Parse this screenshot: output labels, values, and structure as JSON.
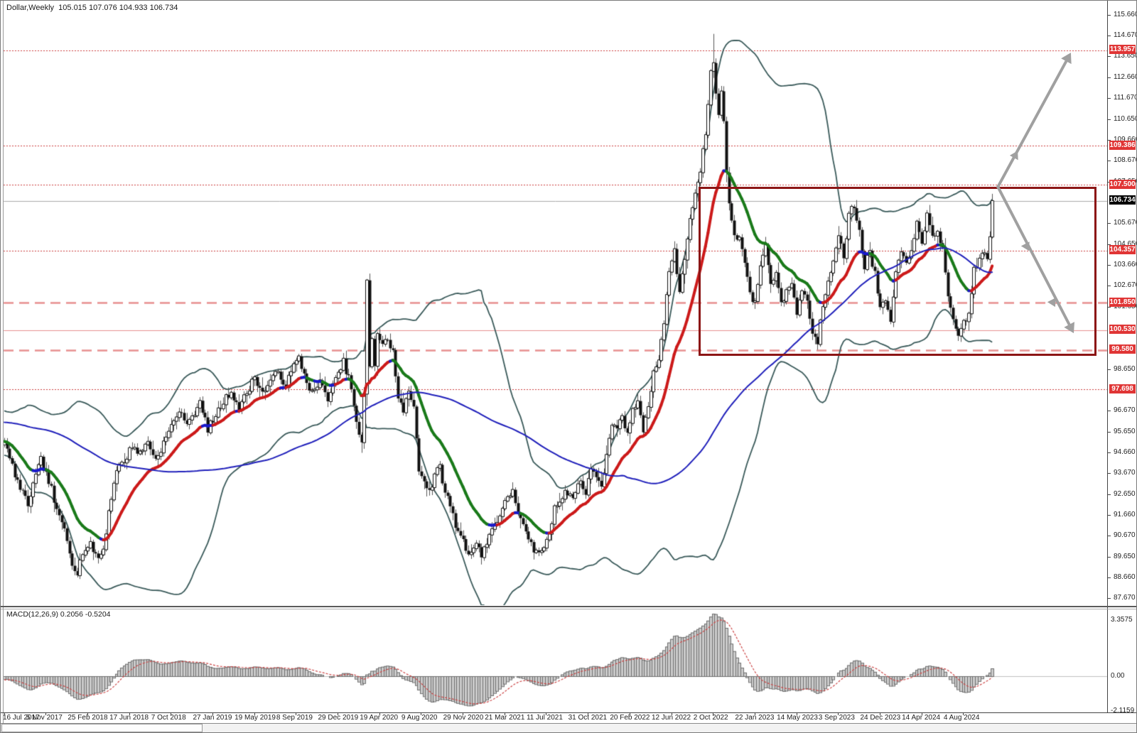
{
  "window": {
    "title": "Dollar,Weekly  105.015 107.076 104.933 106.734"
  },
  "colors": {
    "background": "#ffffff",
    "band_line": "#3a5a5a",
    "candle_body": "#111111",
    "candle_wick": "#555555",
    "ma_fast_up": "#cc1a1a",
    "ma_fast_down": "#1a7a1a",
    "ma_fast_flat": "#1a1acc",
    "ma_slow": "#2020bb",
    "macd_bar_fill": "#cccccc",
    "macd_bar_stroke": "#6e6e6e",
    "macd_signal": "#cc4444",
    "dotted_level": "#cc3b3b",
    "salmon_level": "#e89090",
    "current_price_line": "#aaaaaa",
    "tag_red": "#e03535",
    "tag_black": "#000000",
    "arrow": "#a0a0a0",
    "rectangle": "#8c1515"
  },
  "chart_data": {
    "type": "candlestick",
    "symbol": "Dollar",
    "timeframe": "Weekly",
    "ohlc_display": {
      "open": "105.015",
      "high": "107.076",
      "low": "104.933",
      "close": "106.734"
    },
    "weeks_total": 380,
    "ylim_price": [
      87.34,
      115.865
    ],
    "price_anchors": [
      [
        0,
        95.1
      ],
      [
        3,
        94.0
      ],
      [
        6,
        92.9
      ],
      [
        9,
        92.2
      ],
      [
        12,
        93.5
      ],
      [
        14,
        94.3
      ],
      [
        16,
        93.6
      ],
      [
        18,
        92.9
      ],
      [
        20,
        91.8
      ],
      [
        23,
        91.0
      ],
      [
        26,
        89.4
      ],
      [
        28,
        88.9
      ],
      [
        30,
        89.9
      ],
      [
        33,
        90.2
      ],
      [
        36,
        89.6
      ],
      [
        38,
        90.0
      ],
      [
        40,
        91.8
      ],
      [
        43,
        93.9
      ],
      [
        46,
        94.2
      ],
      [
        49,
        95.0
      ],
      [
        52,
        94.6
      ],
      [
        55,
        95.2
      ],
      [
        58,
        94.3
      ],
      [
        61,
        95.1
      ],
      [
        64,
        95.9
      ],
      [
        67,
        96.7
      ],
      [
        69,
        96.1
      ],
      [
        72,
        96.4
      ],
      [
        75,
        97.0
      ],
      [
        78,
        95.8
      ],
      [
        81,
        96.4
      ],
      [
        84,
        97.1
      ],
      [
        87,
        97.6
      ],
      [
        90,
        96.8
      ],
      [
        93,
        97.5
      ],
      [
        96,
        98.3
      ],
      [
        99,
        97.5
      ],
      [
        102,
        98.1
      ],
      [
        105,
        98.5
      ],
      [
        108,
        97.9
      ],
      [
        111,
        98.8
      ],
      [
        113,
        99.2
      ],
      [
        115,
        98.4
      ],
      [
        118,
        97.5
      ],
      [
        121,
        98.0
      ],
      [
        124,
        97.3
      ],
      [
        127,
        98.1
      ],
      [
        130,
        99.0
      ],
      [
        133,
        97.8
      ],
      [
        135,
        96.0
      ],
      [
        137,
        95.1
      ],
      [
        138,
        97.4
      ],
      [
        139,
        102.8
      ],
      [
        140,
        98.8
      ],
      [
        141,
        100.2
      ],
      [
        142,
        98.9
      ],
      [
        143,
        100.4
      ],
      [
        145,
        99.8
      ],
      [
        147,
        100.1
      ],
      [
        149,
        99.5
      ],
      [
        151,
        97.2
      ],
      [
        153,
        96.7
      ],
      [
        155,
        97.5
      ],
      [
        157,
        96.9
      ],
      [
        159,
        93.9
      ],
      [
        161,
        93.3
      ],
      [
        163,
        92.8
      ],
      [
        165,
        93.5
      ],
      [
        167,
        94.0
      ],
      [
        169,
        92.7
      ],
      [
        171,
        92.2
      ],
      [
        173,
        91.1
      ],
      [
        175,
        90.8
      ],
      [
        177,
        90.0
      ],
      [
        179,
        89.9
      ],
      [
        181,
        90.3
      ],
      [
        183,
        89.7
      ],
      [
        185,
        90.4
      ],
      [
        187,
        91.0
      ],
      [
        189,
        91.4
      ],
      [
        191,
        92.0
      ],
      [
        193,
        92.4
      ],
      [
        195,
        92.9
      ],
      [
        197,
        91.8
      ],
      [
        199,
        91.1
      ],
      [
        201,
        90.4
      ],
      [
        203,
        90.0
      ],
      [
        205,
        89.8
      ],
      [
        207,
        90.2
      ],
      [
        209,
        90.6
      ],
      [
        211,
        92.1
      ],
      [
        213,
        92.3
      ],
      [
        215,
        92.9
      ],
      [
        217,
        92.5
      ],
      [
        219,
        92.8
      ],
      [
        221,
        93.3
      ],
      [
        223,
        92.6
      ],
      [
        225,
        94.0
      ],
      [
        227,
        93.4
      ],
      [
        229,
        93.2
      ],
      [
        231,
        94.4
      ],
      [
        233,
        96.1
      ],
      [
        235,
        95.9
      ],
      [
        237,
        96.3
      ],
      [
        239,
        95.7
      ],
      [
        241,
        96.6
      ],
      [
        243,
        97.2
      ],
      [
        245,
        95.8
      ],
      [
        247,
        96.8
      ],
      [
        249,
        98.4
      ],
      [
        251,
        99.2
      ],
      [
        253,
        101.0
      ],
      [
        255,
        103.2
      ],
      [
        257,
        104.5
      ],
      [
        259,
        102.2
      ],
      [
        261,
        104.0
      ],
      [
        263,
        105.8
      ],
      [
        265,
        107.1
      ],
      [
        267,
        108.1
      ],
      [
        269,
        110.0
      ],
      [
        271,
        112.9
      ],
      [
        272,
        113.2
      ],
      [
        273,
        112.0
      ],
      [
        274,
        110.8
      ],
      [
        275,
        112.0
      ],
      [
        276,
        110.7
      ],
      [
        277,
        108.1
      ],
      [
        278,
        106.5
      ],
      [
        280,
        105.2
      ],
      [
        282,
        104.9
      ],
      [
        284,
        103.9
      ],
      [
        286,
        102.2
      ],
      [
        288,
        101.8
      ],
      [
        290,
        103.7
      ],
      [
        292,
        104.6
      ],
      [
        294,
        102.7
      ],
      [
        296,
        103.4
      ],
      [
        298,
        101.8
      ],
      [
        300,
        102.3
      ],
      [
        302,
        102.9
      ],
      [
        304,
        101.3
      ],
      [
        306,
        102.5
      ],
      [
        308,
        102.0
      ],
      [
        310,
        100.3
      ],
      [
        312,
        100.0
      ],
      [
        314,
        101.8
      ],
      [
        316,
        102.9
      ],
      [
        318,
        104.0
      ],
      [
        320,
        105.2
      ],
      [
        322,
        103.9
      ],
      [
        324,
        106.1
      ],
      [
        326,
        106.5
      ],
      [
        328,
        105.3
      ],
      [
        330,
        103.6
      ],
      [
        332,
        104.3
      ],
      [
        334,
        103.2
      ],
      [
        336,
        101.5
      ],
      [
        338,
        102.0
      ],
      [
        340,
        100.9
      ],
      [
        342,
        103.2
      ],
      [
        344,
        104.2
      ],
      [
        346,
        103.8
      ],
      [
        348,
        104.5
      ],
      [
        350,
        105.6
      ],
      [
        352,
        104.6
      ],
      [
        354,
        106.0
      ],
      [
        356,
        105.1
      ],
      [
        358,
        105.3
      ],
      [
        360,
        104.4
      ],
      [
        362,
        102.0
      ],
      [
        364,
        100.9
      ],
      [
        366,
        100.3
      ],
      [
        368,
        100.9
      ],
      [
        370,
        101.3
      ],
      [
        372,
        103.4
      ],
      [
        374,
        103.9
      ],
      [
        376,
        104.3
      ],
      [
        377,
        104.1
      ],
      [
        378,
        104.95
      ],
      [
        379,
        106.734
      ]
    ],
    "prehistory_anchors": [
      [
        -110,
        96.3
      ],
      [
        -95,
        95.4
      ],
      [
        -80,
        96.6
      ],
      [
        -65,
        97.3
      ],
      [
        -50,
        96.6
      ],
      [
        -35,
        96.2
      ],
      [
        -20,
        95.4
      ],
      [
        -10,
        94.9
      ],
      [
        -1,
        95.2
      ]
    ],
    "overrides": {
      "137": {
        "l": 94.65
      },
      "139": {
        "h": 102.99,
        "l": 96.9
      },
      "272": {
        "h": 114.75
      },
      "379": {
        "o": 105.015,
        "h": 107.076,
        "l": 104.933,
        "c": 106.734
      }
    },
    "indicators": {
      "bollinger": {
        "period": 45,
        "deviation": 2
      },
      "ma_fast": {
        "period": 20,
        "note": "thick slope-colored average"
      },
      "ma_slow": {
        "period": 100,
        "note": "thin blue average"
      },
      "macd": {
        "fast": 12,
        "slow": 26,
        "signal": 9,
        "label": "MACD(12,26,9) 0.2056 -0.5204",
        "main_value": "0.2056",
        "signal_value": "-0.5204"
      }
    },
    "levels": [
      {
        "label": "113.957",
        "price": 113.957,
        "line": "dotted",
        "tag": "red"
      },
      {
        "label": "109.386",
        "price": 109.386,
        "line": "dotted",
        "tag": "red"
      },
      {
        "label": "107.500",
        "price": 107.5,
        "line": "dotted",
        "tag": "red"
      },
      {
        "label": "106.734",
        "price": 106.734,
        "line": "current",
        "tag": "black"
      },
      {
        "label": "104.357",
        "price": 104.357,
        "line": "dotted",
        "tag": "red"
      },
      {
        "label": "101.850",
        "price": 101.85,
        "line": "dashed",
        "tag": "red"
      },
      {
        "label": "100.530",
        "price": 100.53,
        "line": "solid",
        "tag": "red"
      },
      {
        "label": "99.580",
        "price": 99.58,
        "line": "dashed",
        "tag": "red"
      },
      {
        "label": "97.698",
        "price": 97.698,
        "line": "dotted",
        "tag": "red"
      }
    ],
    "price_axis_ticks": [
      {
        "label": "115.660",
        "price": 115.66
      },
      {
        "label": "114.670",
        "price": 114.67
      },
      {
        "label": "113.650",
        "price": 113.65
      },
      {
        "label": "112.660",
        "price": 112.66
      },
      {
        "label": "111.670",
        "price": 111.67
      },
      {
        "label": "110.650",
        "price": 110.65
      },
      {
        "label": "109.660",
        "price": 109.66
      },
      {
        "label": "108.670",
        "price": 108.67
      },
      {
        "label": "107.650",
        "price": 107.65
      },
      {
        "label": "105.670",
        "price": 105.67
      },
      {
        "label": "104.650",
        "price": 104.65
      },
      {
        "label": "103.660",
        "price": 103.66
      },
      {
        "label": "102.670",
        "price": 102.67
      },
      {
        "label": "101.650",
        "price": 101.65
      },
      {
        "label": "98.650",
        "price": 98.65
      },
      {
        "label": "96.670",
        "price": 96.67
      },
      {
        "label": "95.650",
        "price": 95.65
      },
      {
        "label": "94.660",
        "price": 94.66
      },
      {
        "label": "93.670",
        "price": 93.67
      },
      {
        "label": "92.650",
        "price": 92.65
      },
      {
        "label": "91.660",
        "price": 91.66
      },
      {
        "label": "90.670",
        "price": 90.67
      },
      {
        "label": "89.650",
        "price": 89.65
      },
      {
        "label": "88.660",
        "price": 88.66
      },
      {
        "label": "87.670",
        "price": 87.67
      }
    ],
    "time_axis_ticks": [
      {
        "label": "16 Jul 2017",
        "week": 0
      },
      {
        "label": "5 Nov 2017",
        "week": 16
      },
      {
        "label": "25 Feb 2018",
        "week": 32
      },
      {
        "label": "17 Jun 2018",
        "week": 48
      },
      {
        "label": "7 Oct 2018",
        "week": 64
      },
      {
        "label": "27 Jan 2019",
        "week": 80
      },
      {
        "label": "19 May 2019",
        "week": 96
      },
      {
        "label": "8 Sep 2019",
        "week": 112
      },
      {
        "label": "29 Dec 2019",
        "week": 128
      },
      {
        "label": "19 Apr 2020",
        "week": 144
      },
      {
        "label": "9 Aug 2020",
        "week": 160
      },
      {
        "label": "29 Nov 2020",
        "week": 176
      },
      {
        "label": "21 Mar 2021",
        "week": 192
      },
      {
        "label": "11 Jul 2021",
        "week": 208
      },
      {
        "label": "31 Oct 2021",
        "week": 224
      },
      {
        "label": "20 Feb 2022",
        "week": 240
      },
      {
        "label": "12 Jun 2022",
        "week": 256
      },
      {
        "label": "2 Oct 2022",
        "week": 272
      },
      {
        "label": "22 Jan 2023",
        "week": 288
      },
      {
        "label": "14 May 2023",
        "week": 304
      },
      {
        "label": "3 Sep 2023",
        "week": 320
      },
      {
        "label": "24 Dec 2023",
        "week": 336
      },
      {
        "label": "14 Apr 2024",
        "week": 352
      },
      {
        "label": "4 Aug 2024",
        "week": 368
      }
    ],
    "macd_axis": [
      {
        "label": "3.3575",
        "pos": "top"
      },
      {
        "label": "0.00",
        "pos": "zero"
      },
      {
        "label": "-2.1159",
        "pos": "bottom"
      }
    ],
    "annotations": {
      "rectangle": {
        "week_start": 266.6,
        "week_end": 419.3,
        "price_top": 107.41,
        "price_bottom": 99.27
      },
      "arrows": [
        {
          "name": "bullish-scenario-arrow",
          "from": {
            "week": 381.2,
            "price": 107.41
          },
          "to": {
            "week": 409.2,
            "price": 113.85
          },
          "mid_heads": [
            {
              "week": 388.8,
              "price": 109.14
            }
          ]
        },
        {
          "name": "bearish-scenario-arrow",
          "from": {
            "week": 381.2,
            "price": 107.41
          },
          "to": {
            "week": 410.3,
            "price": 100.39
          },
          "mid_heads": [
            {
              "week": 393.1,
              "price": 104.34
            },
            {
              "week": 403.2,
              "price": 101.65
            }
          ]
        }
      ]
    }
  }
}
